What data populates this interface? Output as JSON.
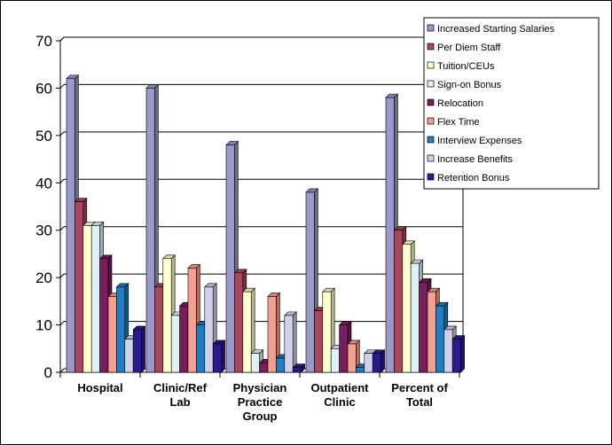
{
  "chart_data": {
    "type": "bar",
    "title": "",
    "xlabel": "",
    "ylabel": "",
    "ylim": [
      0,
      70
    ],
    "yticks": [
      0,
      10,
      20,
      30,
      40,
      50,
      60,
      70
    ],
    "grid": true,
    "legend_position": "top-right",
    "categories": [
      [
        "Hospital"
      ],
      [
        "Clinic/Ref",
        "Lab"
      ],
      [
        "Physician",
        "Practice",
        "Group"
      ],
      [
        "Outpatient",
        "Clinic"
      ],
      [
        "Percent of",
        "Total"
      ]
    ],
    "series": [
      {
        "name": "Increased Starting Salaries",
        "color": "#9999cc",
        "values": [
          62,
          60,
          48,
          38,
          58
        ]
      },
      {
        "name": "Per Diem Staff",
        "color": "#a8475f",
        "values": [
          36,
          18,
          21,
          13,
          30
        ]
      },
      {
        "name": "Tuition/CEUs",
        "color": "#ffffd0",
        "values": [
          31,
          24,
          17,
          17,
          27
        ]
      },
      {
        "name": "Sign-on Bonus",
        "color": "#dff2f8",
        "values": [
          31,
          12,
          4,
          5,
          23
        ]
      },
      {
        "name": "Relocation",
        "color": "#7a1d5c",
        "values": [
          24,
          14,
          2,
          10,
          19
        ]
      },
      {
        "name": "Flex Time",
        "color": "#f2a091",
        "values": [
          16,
          22,
          16,
          6,
          17
        ]
      },
      {
        "name": "Interview Expenses",
        "color": "#1f7ec2",
        "values": [
          18,
          10,
          3,
          1,
          14
        ]
      },
      {
        "name": "Increase Benefits",
        "color": "#d0d2ec",
        "values": [
          7,
          18,
          12,
          4,
          9
        ]
      },
      {
        "name": "Retention Bonus",
        "color": "#2a1a8c",
        "values": [
          9,
          6,
          1,
          4,
          7
        ]
      }
    ]
  }
}
